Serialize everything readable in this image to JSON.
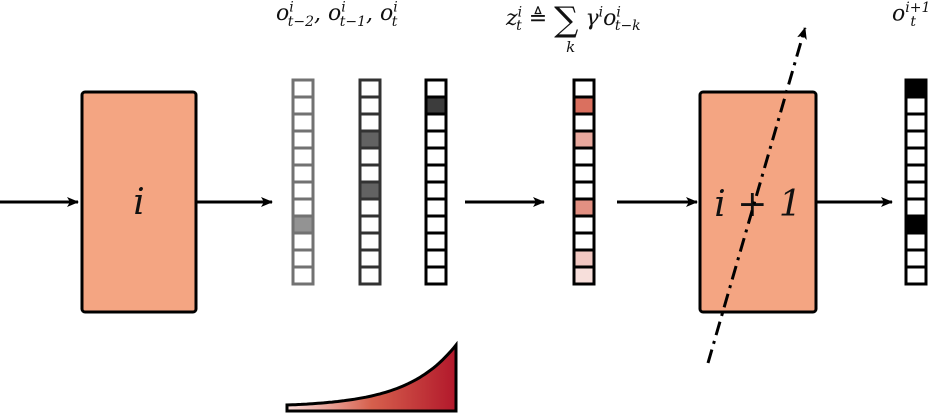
{
  "colors": {
    "layer_fill": "#f4a582",
    "stroke": "#000000",
    "cell_dark": "#3c3c3c",
    "kernel_dark": "#b2182b",
    "kernel_light": "#fde0dd"
  },
  "layer_i": {
    "label": "i"
  },
  "layer_next": {
    "label": "i + 1"
  },
  "labels": {
    "prev_outputs": {
      "o": "o",
      "t_minus_2": "i",
      "t_minus_2_sub": "t−2",
      "sep1": ",",
      "t_minus_1": "i",
      "t_minus_1_sub": "t−1",
      "sep2": ",",
      "t": "i",
      "t_sub": "t"
    },
    "z_def": {
      "z": "z",
      "z_sup": "i",
      "z_sub": "t",
      "defeq": "≜",
      "sum": "∑",
      "sum_sub": "k",
      "gamma": "γ",
      "gamma_sup": "i",
      "o": "o",
      "o_sup": "i",
      "o_sub": "t−k"
    },
    "next_output": {
      "o": "o",
      "sup": "i+1",
      "sub": "t"
    }
  },
  "columns": [
    {
      "name": "o_t_minus_2",
      "cells": 12,
      "active": [
        8
      ],
      "opacity": 0.55
    },
    {
      "name": "o_t_minus_1",
      "cells": 12,
      "active": [
        3,
        6
      ],
      "opacity": 0.8
    },
    {
      "name": "o_t",
      "cells": 12,
      "active": [
        1
      ],
      "opacity": 1
    }
  ],
  "z_column": {
    "cells": 12,
    "intensities": [
      0,
      0.9,
      0,
      0.55,
      0,
      0,
      0,
      0.7,
      0,
      0,
      0.35,
      0.2
    ]
  },
  "output_column": {
    "cells": 12,
    "active": [
      0,
      8
    ]
  },
  "kernel_curve": {
    "gamma": 0.75
  }
}
